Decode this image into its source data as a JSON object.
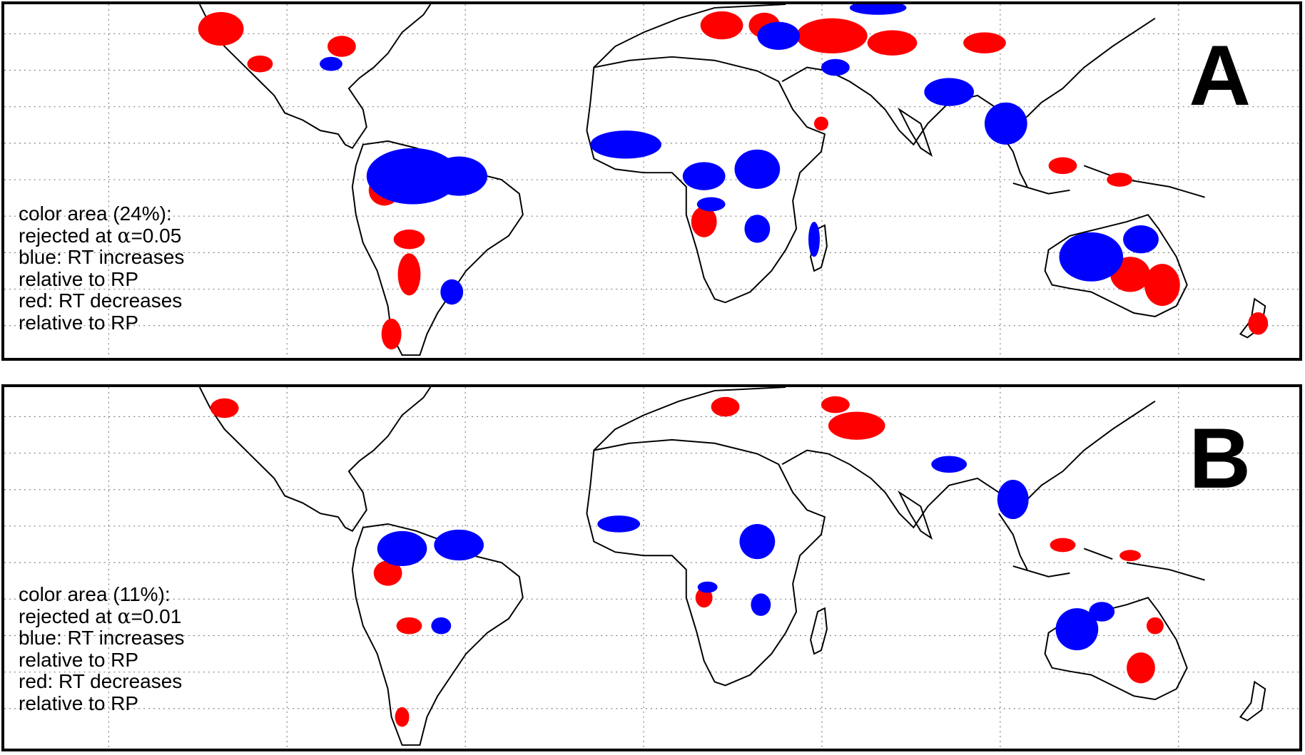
{
  "figure": {
    "panels": [
      {
        "letter": "A",
        "legend": {
          "color_area": "color area (24%):",
          "rejected_prefix": "rejected at ",
          "alpha_symbol": "α",
          "alpha_value": "=0.05",
          "blue_line": "blue: RT increases",
          "blue_sub": "relative to RP",
          "red_line": "red: RT decreases",
          "red_sub": "relative to RP"
        },
        "color_area_percent": 24,
        "alpha": 0.05
      },
      {
        "letter": "B",
        "legend": {
          "color_area": "color area (11%):",
          "rejected_prefix": "rejected at ",
          "alpha_symbol": "α",
          "alpha_value": "=0.01",
          "blue_line": "blue: RT increases",
          "blue_sub": "relative to RP",
          "red_line": "red: RT decreases",
          "red_sub": "relative to RP"
        },
        "color_area_percent": 11,
        "alpha": 0.01
      }
    ],
    "colors": {
      "increase": "#0000ff",
      "decrease": "#ff0000",
      "coastline": "#000000",
      "grid": "#808080"
    }
  }
}
